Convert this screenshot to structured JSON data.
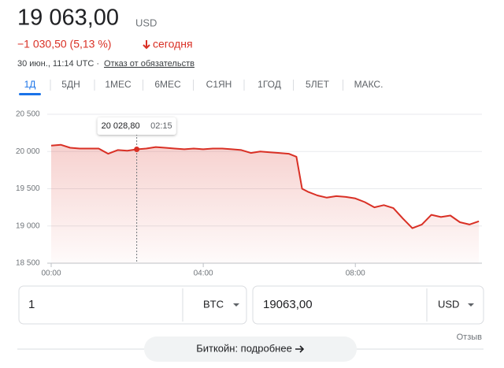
{
  "header": {
    "price": "19 063,00",
    "currency": "USD",
    "change": "−1 030,50 (5,13 %)",
    "period": "сегодня",
    "timestamp": "30 июн., 11:14 UTC ·",
    "disclaimer": "Отказ от обязательств"
  },
  "tabs": [
    "1Д",
    "5ДН",
    "1МЕС",
    "6МЕС",
    "С1ЯН",
    "1ГОД",
    "5ЛЕТ",
    "МАКС."
  ],
  "selected_tab": 0,
  "chart_data": {
    "type": "line",
    "color": "#d93025",
    "x": [
      0,
      0.25,
      0.5,
      0.75,
      1,
      1.25,
      1.5,
      1.75,
      2,
      2.25,
      2.5,
      2.75,
      3,
      3.25,
      3.5,
      3.75,
      4,
      4.25,
      4.5,
      4.75,
      5,
      5.25,
      5.5,
      5.75,
      6,
      6.25,
      6.45,
      6.6,
      6.75,
      7,
      7.25,
      7.5,
      7.75,
      8,
      8.25,
      8.5,
      8.75,
      9,
      9.25,
      9.5,
      9.75,
      10,
      10.25,
      10.5,
      10.75,
      11,
      11.25
    ],
    "values": [
      20080,
      20090,
      20050,
      20040,
      20040,
      20040,
      19970,
      20020,
      20010,
      20028.8,
      20040,
      20060,
      20050,
      20040,
      20030,
      20040,
      20030,
      20040,
      20040,
      20030,
      20020,
      19980,
      20000,
      19990,
      19980,
      19970,
      19930,
      19500,
      19460,
      19410,
      19380,
      19400,
      19390,
      19370,
      19320,
      19250,
      19280,
      19240,
      19100,
      18970,
      19020,
      19150,
      19120,
      19140,
      19050,
      19020,
      19063
    ],
    "xlim": [
      0,
      11.33
    ],
    "xticks": [
      {
        "value": 0,
        "label": "00:00"
      },
      {
        "value": 4,
        "label": "04:00"
      },
      {
        "value": 8,
        "label": "08:00"
      }
    ],
    "ylim": [
      18500,
      20500
    ],
    "yticks": [
      {
        "value": 18500,
        "label": "18 500"
      },
      {
        "value": 19000,
        "label": "19 000"
      },
      {
        "value": 19500,
        "label": "19 500"
      },
      {
        "value": 20000,
        "label": "20 000"
      },
      {
        "value": 20500,
        "label": "20 500"
      }
    ],
    "grid": true,
    "tooltip": {
      "index": 9,
      "value_label": "20 028,80",
      "time": "02:15"
    }
  },
  "converter": {
    "amount": "1",
    "from": "BTC",
    "result": "19063,00",
    "to": "USD",
    "feedback": "Отзыв"
  },
  "more_button": "Биткойн: подробнее"
}
